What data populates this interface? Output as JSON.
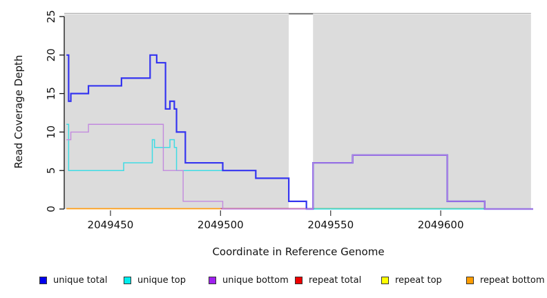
{
  "chart_data": {
    "type": "line",
    "subtype": "step-coverage",
    "title": "",
    "xlabel": "Coordinate in Reference Genome",
    "ylabel": "Read Coverage Depth",
    "xlim": [
      2049429,
      2049642
    ],
    "ylim": [
      0,
      25
    ],
    "x_ticks": [
      2049450,
      2049500,
      2049550,
      2049600
    ],
    "y_ticks": [
      0,
      5,
      10,
      15,
      20,
      25
    ],
    "grid": false,
    "legend_position": "bottom",
    "background_regions": [
      {
        "name": "unique-region-left",
        "x0": 2049429,
        "x1": 2049531,
        "color": "#dcdcdc"
      },
      {
        "name": "gap-region",
        "x0": 2049531,
        "x1": 2049542,
        "color": "#ffffff"
      },
      {
        "name": "unique-region-right",
        "x0": 2049542,
        "x1": 2049641,
        "color": "#dcdcdc"
      }
    ],
    "series": [
      {
        "name": "unique top",
        "color": "#3edce4",
        "width": 1.5,
        "end": 2049642,
        "steps": [
          [
            2049430,
            11
          ],
          [
            2049431,
            5
          ],
          [
            2049456,
            6
          ],
          [
            2049469,
            9
          ],
          [
            2049470,
            8
          ],
          [
            2049477,
            9
          ],
          [
            2049479,
            8
          ],
          [
            2049480,
            5
          ],
          [
            2049516,
            4
          ],
          [
            2049531,
            1
          ],
          [
            2049539,
            0
          ]
        ]
      },
      {
        "name": "unique total",
        "color": "#3434f0",
        "width": 2.2,
        "end": 2049642,
        "steps": [
          [
            2049430,
            20
          ],
          [
            2049431,
            14
          ],
          [
            2049432,
            15
          ],
          [
            2049440,
            16
          ],
          [
            2049455,
            17
          ],
          [
            2049468,
            20
          ],
          [
            2049471,
            19
          ],
          [
            2049475,
            13
          ],
          [
            2049477,
            14
          ],
          [
            2049479,
            13
          ],
          [
            2049480,
            10
          ],
          [
            2049484,
            6
          ],
          [
            2049501,
            5
          ],
          [
            2049516,
            4
          ],
          [
            2049531,
            1
          ],
          [
            2049539,
            0
          ],
          [
            2049542,
            6
          ],
          [
            2049560,
            7
          ],
          [
            2049603,
            1
          ],
          [
            2049620,
            0
          ]
        ]
      },
      {
        "name": "unique bottom",
        "color": "#c289de",
        "width": 1.4,
        "end": 2049642,
        "steps": [
          [
            2049430,
            9
          ],
          [
            2049432,
            10
          ],
          [
            2049440,
            11
          ],
          [
            2049474,
            5
          ],
          [
            2049483,
            1
          ],
          [
            2049501,
            0
          ],
          [
            2049542,
            6
          ],
          [
            2049560,
            7
          ],
          [
            2049603,
            1
          ],
          [
            2049620,
            0
          ]
        ]
      }
    ],
    "baseline_series": [
      {
        "name": "repeat bottom",
        "value": 0,
        "visible_from": 2049430,
        "visible_to": 2049500,
        "visible_color": "#ff9b12"
      },
      {
        "name": "repeat total",
        "value": 0,
        "visible_from": 2049500,
        "visible_to": 2049542,
        "visible_color": "#c4496f"
      },
      {
        "name": "repeat top",
        "value": 0,
        "visible_from": 2049542,
        "visible_to": 2049620,
        "visible_color": "#68bc6d"
      }
    ]
  },
  "legend": {
    "items": [
      {
        "label": "unique total",
        "color": "#0000ee"
      },
      {
        "label": "unique top",
        "color": "#00eeee"
      },
      {
        "label": "unique bottom",
        "color": "#a020f0"
      },
      {
        "label": "repeat total",
        "color": "#ee0000"
      },
      {
        "label": "repeat top",
        "color": "#ffff00"
      },
      {
        "label": "repeat bottom",
        "color": "#ff9d00"
      }
    ]
  }
}
